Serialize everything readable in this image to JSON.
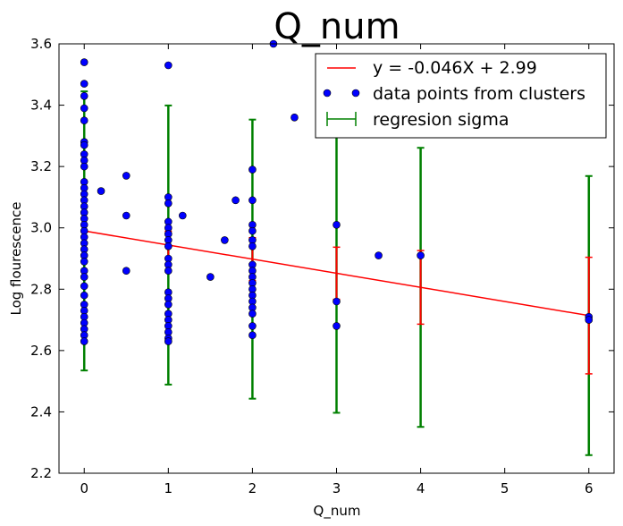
{
  "chart_data": {
    "type": "scatter",
    "title": "Q_num",
    "xlabel": "Q_num",
    "ylabel": "Log flourescence",
    "xlim": [
      -0.3,
      6.3
    ],
    "ylim": [
      2.2,
      3.6
    ],
    "xticks": [
      0,
      1,
      2,
      3,
      4,
      5,
      6
    ],
    "yticks": [
      2.2,
      2.4,
      2.6,
      2.8,
      3.0,
      3.2,
      3.4,
      3.6
    ],
    "xtick_labels": [
      "0",
      "1",
      "2",
      "3",
      "4",
      "5",
      "6"
    ],
    "ytick_labels": [
      "2.2",
      "2.4",
      "2.6",
      "2.8",
      "3.0",
      "3.2",
      "3.4",
      "3.6"
    ],
    "grid": false,
    "legend_position": "top-right",
    "regression": {
      "name": "y = -0.046X + 2.99",
      "slope": -0.046,
      "intercept": 2.99,
      "x_range": [
        0,
        6
      ],
      "color": "#ff0000"
    },
    "scatter_series": {
      "name": "data points from clusters",
      "color": "#0000ff",
      "points": [
        [
          0,
          3.54
        ],
        [
          0,
          3.47
        ],
        [
          0,
          3.43
        ],
        [
          0,
          3.39
        ],
        [
          0,
          3.35
        ],
        [
          0,
          3.28
        ],
        [
          0,
          3.27
        ],
        [
          0,
          3.24
        ],
        [
          0,
          3.22
        ],
        [
          0,
          3.2
        ],
        [
          0,
          3.15
        ],
        [
          0,
          3.13
        ],
        [
          0,
          3.11
        ],
        [
          0,
          3.09
        ],
        [
          0,
          3.07
        ],
        [
          0,
          3.05
        ],
        [
          0,
          3.03
        ],
        [
          0,
          3.01
        ],
        [
          0,
          2.99
        ],
        [
          0,
          2.97
        ],
        [
          0,
          2.95
        ],
        [
          0,
          2.93
        ],
        [
          0,
          2.91
        ],
        [
          0,
          2.89
        ],
        [
          0,
          2.86
        ],
        [
          0,
          2.84
        ],
        [
          0,
          2.81
        ],
        [
          0,
          2.78
        ],
        [
          0,
          2.75
        ],
        [
          0,
          2.73
        ],
        [
          0,
          2.71
        ],
        [
          0,
          2.69
        ],
        [
          0,
          2.67
        ],
        [
          0,
          2.65
        ],
        [
          0,
          2.63
        ],
        [
          0.2,
          3.12
        ],
        [
          0.5,
          3.17
        ],
        [
          0.5,
          3.04
        ],
        [
          0.5,
          2.86
        ],
        [
          1,
          3.53
        ],
        [
          1,
          3.1
        ],
        [
          1,
          3.08
        ],
        [
          1,
          3.02
        ],
        [
          1,
          3.0
        ],
        [
          1,
          2.98
        ],
        [
          1,
          2.96
        ],
        [
          1,
          2.94
        ],
        [
          1,
          2.9
        ],
        [
          1,
          2.88
        ],
        [
          1,
          2.86
        ],
        [
          1,
          2.79
        ],
        [
          1,
          2.77
        ],
        [
          1,
          2.75
        ],
        [
          1,
          2.72
        ],
        [
          1,
          2.7
        ],
        [
          1,
          2.68
        ],
        [
          1,
          2.66
        ],
        [
          1,
          2.64
        ],
        [
          1,
          2.63
        ],
        [
          1.17,
          3.04
        ],
        [
          1.5,
          2.84
        ],
        [
          1.67,
          2.96
        ],
        [
          1.8,
          3.09
        ],
        [
          2,
          3.19
        ],
        [
          2,
          3.09
        ],
        [
          2,
          3.01
        ],
        [
          2,
          2.99
        ],
        [
          2,
          2.96
        ],
        [
          2,
          2.94
        ],
        [
          2,
          2.88
        ],
        [
          2,
          2.86
        ],
        [
          2,
          2.84
        ],
        [
          2,
          2.82
        ],
        [
          2,
          2.8
        ],
        [
          2,
          2.78
        ],
        [
          2,
          2.76
        ],
        [
          2,
          2.74
        ],
        [
          2,
          2.72
        ],
        [
          2,
          2.68
        ],
        [
          2,
          2.65
        ],
        [
          2.25,
          3.6
        ],
        [
          2.5,
          3.36
        ],
        [
          3,
          3.01
        ],
        [
          3,
          2.76
        ],
        [
          3,
          2.68
        ],
        [
          3.5,
          2.91
        ],
        [
          4,
          2.91
        ],
        [
          6,
          2.71
        ],
        [
          6,
          2.7
        ]
      ]
    },
    "errorbars": {
      "name": "regresion sigma",
      "color": "#008000",
      "inner_color": "#ff0000",
      "bars": [
        {
          "x": 0,
          "center": 2.99,
          "sigma": 0.455,
          "inner_sigma": 0.04
        },
        {
          "x": 1,
          "center": 2.944,
          "sigma": 0.455,
          "inner_sigma": 0.045
        },
        {
          "x": 2,
          "center": 2.898,
          "sigma": 0.455,
          "inner_sigma": 0.07
        },
        {
          "x": 3,
          "center": 2.852,
          "sigma": 0.455,
          "inner_sigma": 0.085
        },
        {
          "x": 4,
          "center": 2.806,
          "sigma": 0.455,
          "inner_sigma": 0.12
        },
        {
          "x": 6,
          "center": 2.714,
          "sigma": 0.455,
          "inner_sigma": 0.19
        }
      ]
    }
  }
}
